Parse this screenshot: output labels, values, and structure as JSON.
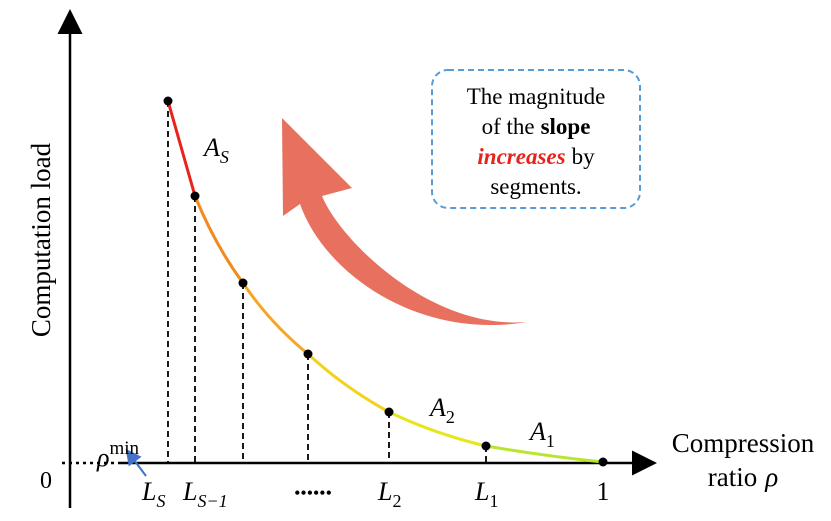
{
  "y_axis_label": "Computation load",
  "x_axis_label": {
    "line1": "Compression",
    "line2": "ratio",
    "symbol": "ρ"
  },
  "origin": "0",
  "rho_min": {
    "base": "ρ",
    "sup": "min"
  },
  "ticks": {
    "ls": {
      "base": "L",
      "sub": "S"
    },
    "ls1": {
      "base": "L",
      "sub": "S−1"
    },
    "ellipsis": "••••••",
    "l2": {
      "base": "L",
      "sub": "2"
    },
    "l1": {
      "base": "L",
      "sub": "1"
    },
    "one": "1"
  },
  "segments": {
    "as": {
      "base": "A",
      "sub": "S"
    },
    "a2": {
      "base": "A",
      "sub": "2"
    },
    "a1": {
      "base": "A",
      "sub": "1"
    }
  },
  "callout": {
    "line1": "The magnitude",
    "line2_a": "of the",
    "line2_b": "slope",
    "line3_a": "increases",
    "line3_b": "by",
    "line4": "segments."
  }
}
